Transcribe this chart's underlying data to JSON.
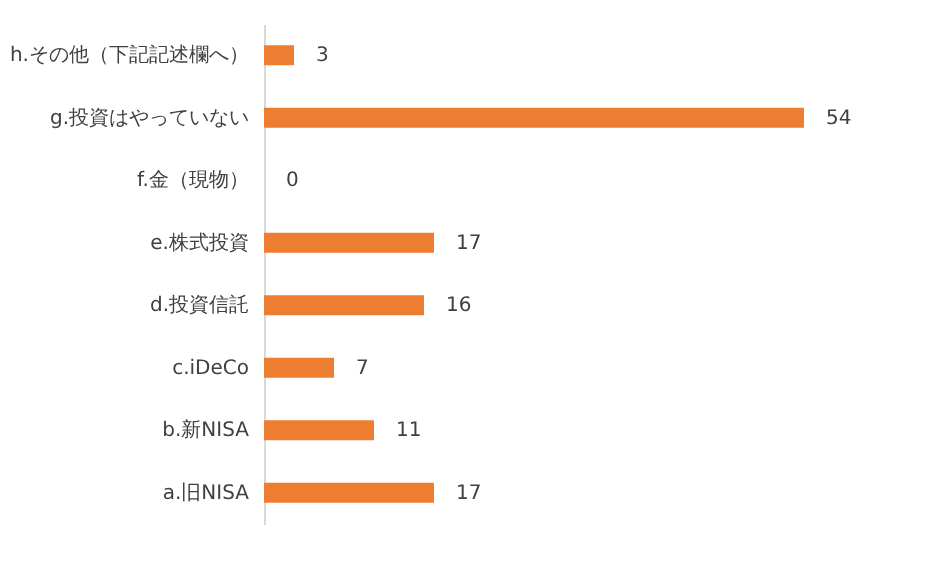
{
  "chart_data": {
    "type": "bar",
    "orientation": "horizontal",
    "categories": [
      "h.その他（下記記述欄へ）",
      "g.投資はやっていない",
      "f.金（現物）",
      "e.株式投資",
      "d.投資信託",
      "c.iDeCo",
      "b.新NISA",
      "a.旧NISA"
    ],
    "values": [
      3,
      54,
      0,
      17,
      16,
      7,
      11,
      17
    ],
    "color": "#ed7d31",
    "data_labels": true
  }
}
